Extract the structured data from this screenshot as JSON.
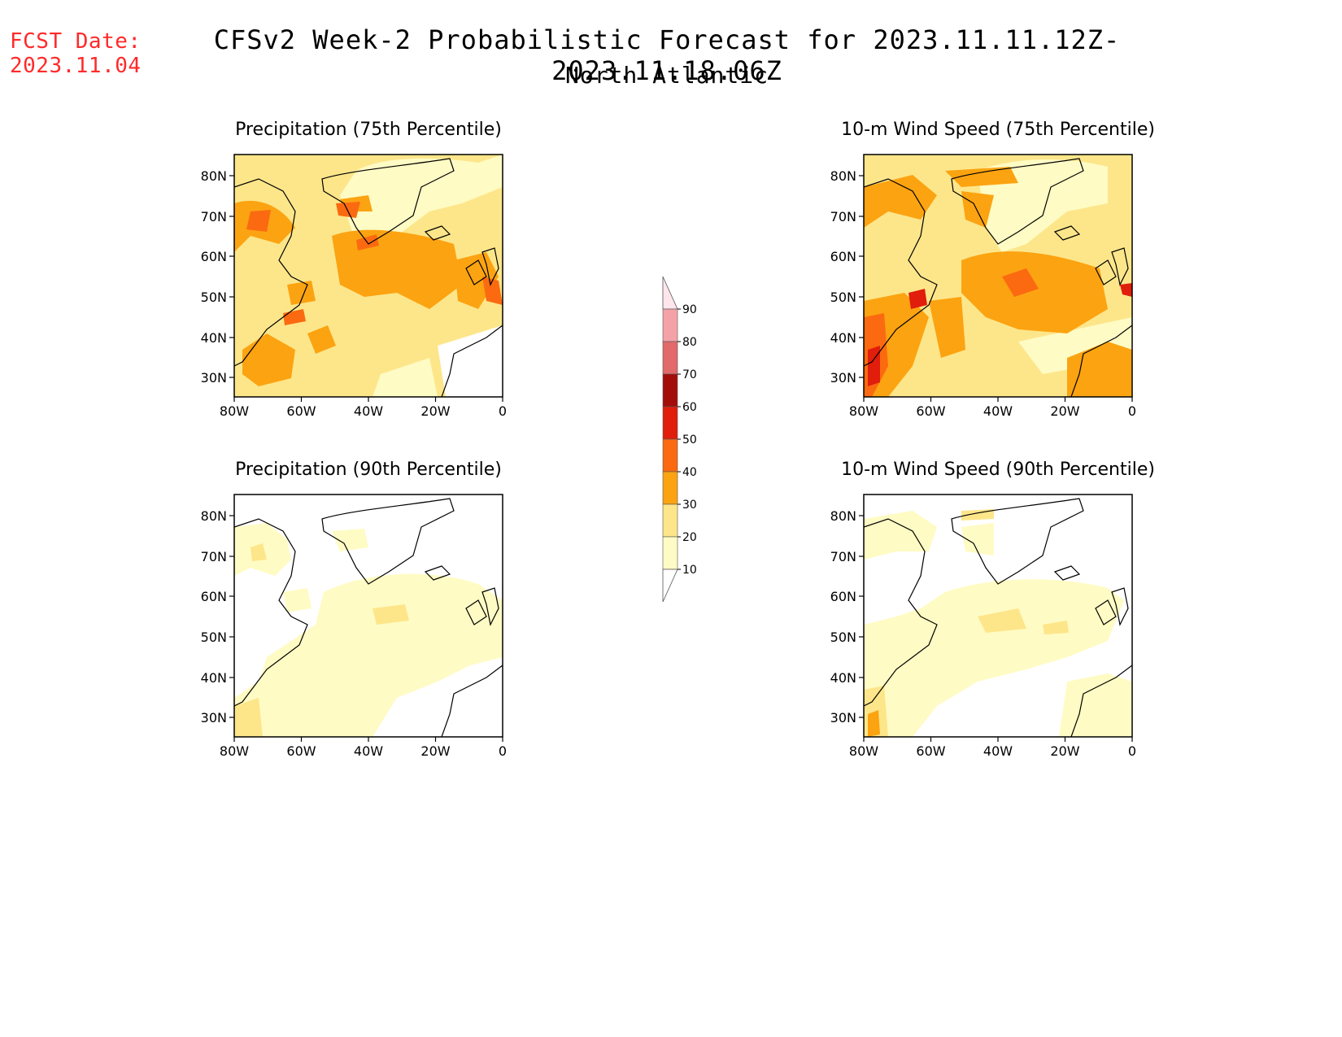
{
  "header": {
    "fcst_label": "FCST Date:",
    "fcst_date": "2023.11.04",
    "title": "CFSv2 Week-2 Probabilistic Forecast for 2023.11.11.12Z-2023.11.18.06Z",
    "subtitle": "North Atlantic"
  },
  "panels": [
    {
      "title": "Precipitation (75th Percentile)"
    },
    {
      "title": "10-m Wind Speed (75th Percentile)"
    },
    {
      "title": "Precipitation (90th Percentile)"
    },
    {
      "title": "10-m Wind Speed (90th Percentile)"
    }
  ],
  "axes": {
    "lat_labels": [
      "80N",
      "70N",
      "60N",
      "50N",
      "40N",
      "30N"
    ],
    "lon_labels": [
      "80W",
      "60W",
      "40W",
      "20W",
      "0"
    ]
  },
  "colorbar": {
    "levels": [
      "10",
      "20",
      "30",
      "40",
      "50",
      "60",
      "70",
      "80",
      "90"
    ],
    "colors": [
      "#fffbc4",
      "#fde68a",
      "#fca311",
      "#fb6a10",
      "#e11d0b",
      "#a30e0a",
      "#e26a6a",
      "#f4a2a8",
      "#ffe6ec"
    ]
  }
}
